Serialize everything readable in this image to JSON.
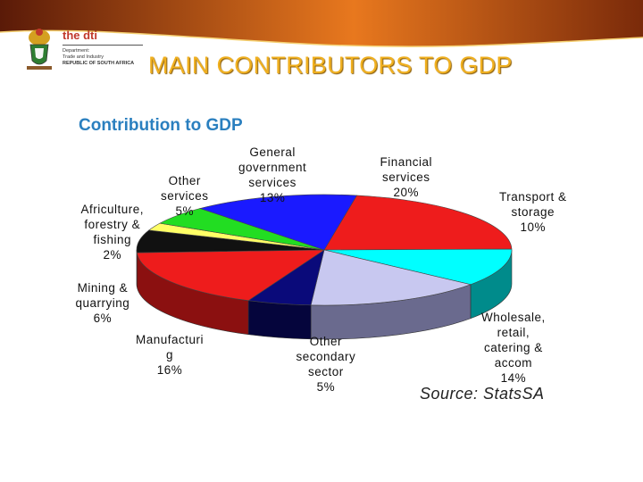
{
  "header": {
    "logo_name": "the dti",
    "dept_lines": [
      "Department:",
      "Trade and Industry",
      "REPUBLIC OF SOUTH AFRICA"
    ],
    "slide_title": "MAIN CONTRIBUTORS TO GDP"
  },
  "colors": {
    "banner_dark": "#5a1a08",
    "banner_orange": "#e8781e",
    "title_gold": "#f0b020",
    "chart_title_blue": "#2a7fbf"
  },
  "chart_data": {
    "type": "pie",
    "title": "Contribution to GDP",
    "source": "Source: StatsSA",
    "slices": [
      {
        "label": "Financial services",
        "display": "Financial\nservices\n20%",
        "value": 20,
        "color": "#ee1c1c",
        "side": "#9a1010"
      },
      {
        "label": "Transport & storage",
        "display": "Transport &\nstorage\n10%",
        "value": 10,
        "color": "#00ffff",
        "side": "#008b8b"
      },
      {
        "label": "Wholesale, retail, catering & accom",
        "display": "Wholesale,\nretail,\ncatering &\naccom\n14%",
        "value": 14,
        "color": "#c8c8f0",
        "side": "#6a6a8e"
      },
      {
        "label": "Other secondary sector",
        "display": "Other\nsecondary\nsector\n5%",
        "value": 5,
        "color": "#0a0a7a",
        "side": "#05053c"
      },
      {
        "label": "Manufacturing",
        "display": "Manufacturi\ng\n16%",
        "value": 16,
        "color": "#ee1c1c",
        "side": "#8b1010"
      },
      {
        "label": "Mining & quarrying",
        "display": "Mining &\nquarrying\n6%",
        "value": 6,
        "color": "#111111",
        "side": "#000000"
      },
      {
        "label": "Africulture, forestry & fishing",
        "display": "Africulture,\nforestry &\nfishing\n2%",
        "value": 2,
        "color": "#ffff66",
        "side": "#999933"
      },
      {
        "label": "Other services",
        "display": "Other\nservices\n5%",
        "value": 5,
        "color": "#22dd22",
        "side": "#117711"
      },
      {
        "label": "General government services",
        "display": "General\ngovernment\nservices\n13%",
        "value": 13,
        "color": "#1a1aff",
        "side": "#0a0a88"
      }
    ]
  }
}
